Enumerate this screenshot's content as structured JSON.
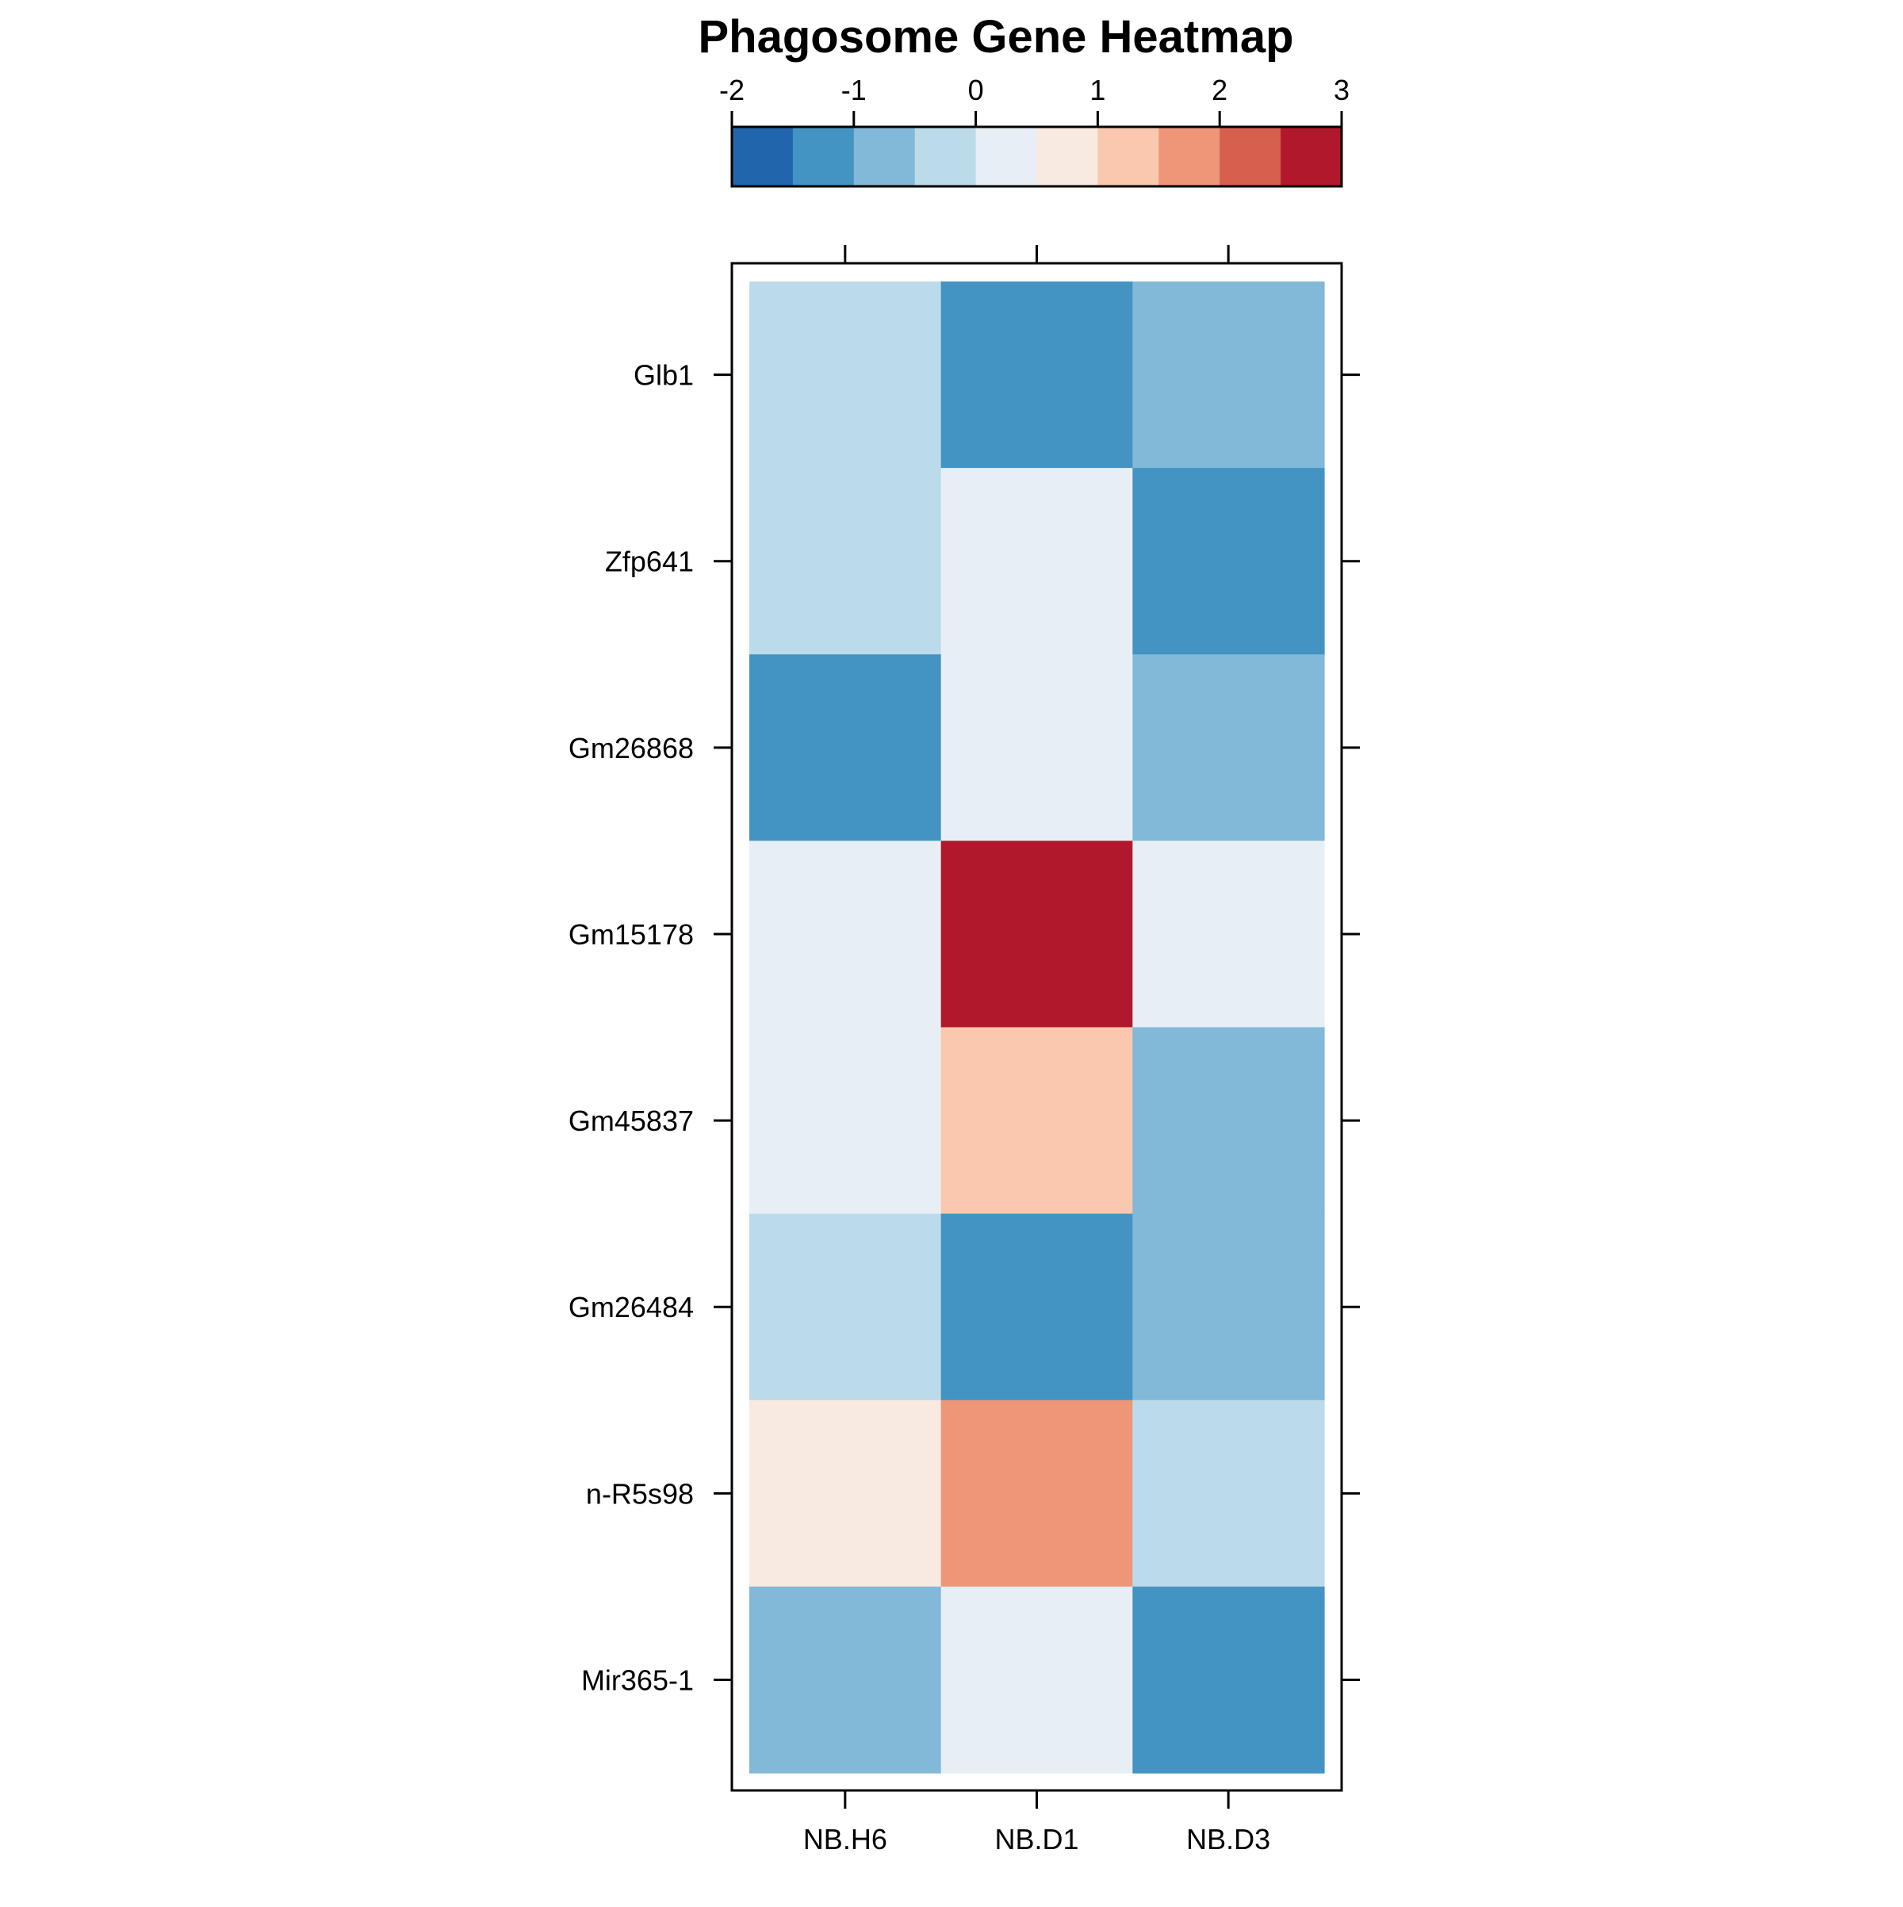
{
  "chart_data": {
    "type": "heatmap",
    "title": "Phagosome Gene Heatmap",
    "xlabel": "",
    "ylabel": "",
    "columns": [
      "NB.H6",
      "NB.D1",
      "NB.D3"
    ],
    "rows": [
      "Glb1",
      "Zfp641",
      "Gm26868",
      "Gm15178",
      "Gm45837",
      "Gm26484",
      "n-R5s98",
      "Mir365-1"
    ],
    "values": [
      [
        -0.25,
        -1.25,
        -0.75
      ],
      [
        -0.25,
        0.25,
        -1.25
      ],
      [
        -1.25,
        0.25,
        -0.75
      ],
      [
        0.25,
        2.75,
        0.25
      ],
      [
        0.25,
        1.25,
        -0.75
      ],
      [
        -0.25,
        -1.25,
        -0.75
      ],
      [
        0.75,
        1.75,
        -0.25
      ],
      [
        -0.75,
        0.25,
        -1.25
      ]
    ],
    "colorbar": {
      "range": [
        -2,
        3
      ],
      "ticks": [
        "-2",
        "-1",
        "0",
        "1",
        "2",
        "3"
      ],
      "breaks": [
        -2,
        -1.5,
        -1,
        -0.5,
        0,
        0.5,
        1,
        1.5,
        2,
        2.5,
        3
      ],
      "colors": [
        "#2166AC",
        "#4393C3",
        "#82B8D8",
        "#BCDBEA",
        "#E7EFF5",
        "#F8E9E1",
        "#FAC8AF",
        "#EE9677",
        "#D6604D",
        "#B2182B"
      ]
    }
  }
}
